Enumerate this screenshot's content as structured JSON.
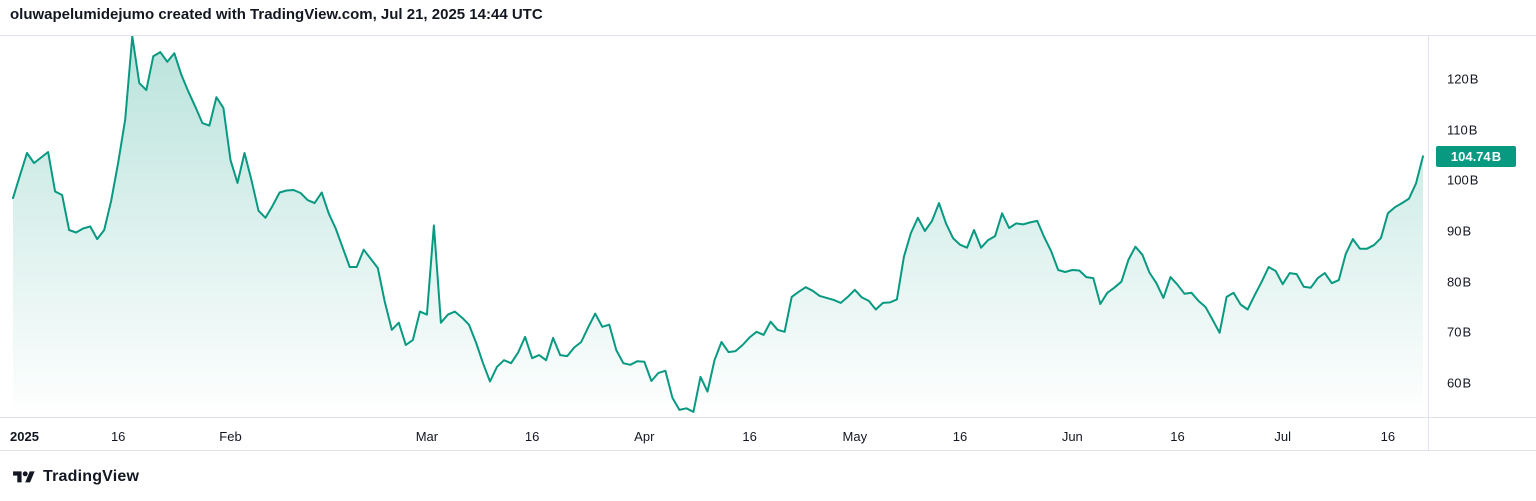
{
  "header": {
    "attribution": "oluwapelumidejumo created with TradingView.com, Jul 21, 2025 14:44 UTC"
  },
  "footer": {
    "brand": "TradingView"
  },
  "chart_data": {
    "type": "area",
    "unit": "B",
    "start_date": "2025-01-01",
    "end_date": "2025-07-21",
    "interval": "1D",
    "line_color": "#089981",
    "values": [
      96.5,
      101,
      105.4,
      103.4,
      104.5,
      105.6,
      97.8,
      97.1,
      90.2,
      89.7,
      90.5,
      90.9,
      88.4,
      90.2,
      96,
      103.5,
      112,
      128.4,
      119.2,
      117.8,
      124.5,
      125.3,
      123.4,
      125.1,
      120.8,
      117.5,
      114.5,
      111.3,
      110.8,
      116.4,
      114.3,
      104,
      99.5,
      105.4,
      100,
      94,
      92.6,
      95,
      97.6,
      98,
      98.1,
      97.5,
      96.1,
      95.5,
      97.6,
      93.5,
      90.5,
      86.7,
      82.9,
      82.9,
      86.3,
      84.5,
      82.7,
      76,
      70.5,
      71.9,
      67.5,
      68.5,
      74.1,
      73.5,
      91.1,
      71.9,
      73.5,
      74.1,
      72.9,
      71.5,
      68,
      63.9,
      60.3,
      63.2,
      64.5,
      63.9,
      66,
      69.1,
      64.9,
      65.5,
      64.5,
      68.9,
      65.5,
      65.3,
      67,
      68.1,
      71,
      73.7,
      71.1,
      71.5,
      66.5,
      63.9,
      63.6,
      64.3,
      64.2,
      60.4,
      62,
      62.4,
      57.1,
      54.7,
      55,
      54.3,
      61.2,
      58.3,
      64.5,
      68.1,
      66.1,
      66.3,
      67.5,
      69,
      70.1,
      69.5,
      72.1,
      70.5,
      70.1,
      77,
      78,
      78.9,
      78.2,
      77.2,
      76.8,
      76.4,
      75.8,
      77,
      78.4,
      76.9,
      76.2,
      74.5,
      75.8,
      75.9,
      76.5,
      84.9,
      89.6,
      92.6,
      90,
      92,
      95.5,
      91.5,
      88.6,
      87.3,
      86.7,
      90.2,
      86.7,
      88.2,
      89,
      93.5,
      90.6,
      91.5,
      91.3,
      91.7,
      92,
      88.8,
      86,
      82.3,
      81.9,
      82.3,
      82.2,
      80.9,
      80.7,
      75.6,
      77.8,
      78.8,
      80,
      84.3,
      86.9,
      85.3,
      81.8,
      79.7,
      76.8,
      80.9,
      79.4,
      77.6,
      77.8,
      76.2,
      75,
      72.5,
      69.9,
      77,
      77.8,
      75.5,
      74.5,
      77.3,
      80,
      82.9,
      82.1,
      79.5,
      81.7,
      81.5,
      79,
      78.8,
      80.7,
      81.7,
      79.7,
      80.3,
      85.5,
      88.4,
      86.5,
      86.5,
      87.2,
      88.6,
      93.5,
      94.7,
      95.5,
      96.4,
      99.4,
      104.74
    ],
    "last_value": 104.74,
    "last_value_label": "104.74 B",
    "y_axis": {
      "ticks": [
        {
          "label": "120 B",
          "value": 120
        },
        {
          "label": "110 B",
          "value": 110
        },
        {
          "label": "100 B",
          "value": 100
        },
        {
          "label": "90 B",
          "value": 90
        },
        {
          "label": "80 B",
          "value": 80
        },
        {
          "label": "70 B",
          "value": 70
        },
        {
          "label": "60 B",
          "value": 60
        }
      ]
    },
    "x_axis": {
      "ticks": [
        {
          "label": "2025",
          "day": 0,
          "emphasis": true
        },
        {
          "label": "16",
          "day": 15
        },
        {
          "label": "Feb",
          "day": 31
        },
        {
          "label": "Mar",
          "day": 59
        },
        {
          "label": "16",
          "day": 74
        },
        {
          "label": "Apr",
          "day": 90
        },
        {
          "label": "16",
          "day": 105
        },
        {
          "label": "May",
          "day": 120
        },
        {
          "label": "16",
          "day": 135
        },
        {
          "label": "Jun",
          "day": 151
        },
        {
          "label": "16",
          "day": 166
        },
        {
          "label": "Jul",
          "day": 181
        },
        {
          "label": "16",
          "day": 196
        }
      ]
    }
  }
}
